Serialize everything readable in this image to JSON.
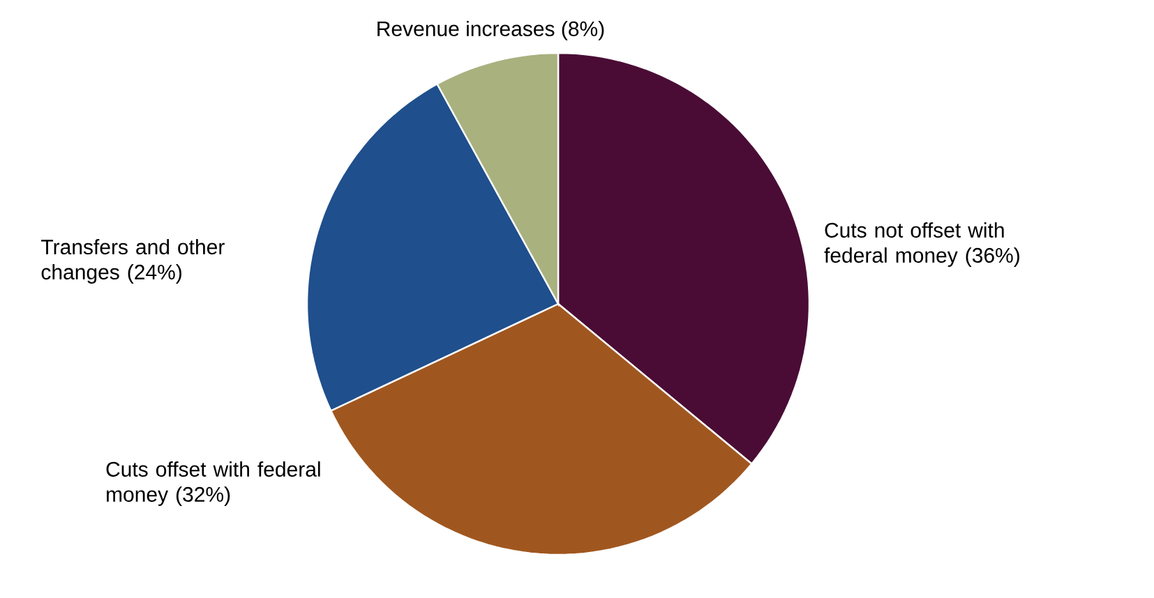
{
  "chart_data": {
    "type": "pie",
    "categories": [
      "Cuts not offset with federal money (36%)",
      "Cuts offset with federal money (32%)",
      "Transfers and other changes (24%)",
      "Revenue increases (8%)"
    ],
    "values": [
      36,
      32,
      24,
      8
    ],
    "colors": [
      "#4a0c35",
      "#a0571f",
      "#1f4f8c",
      "#a9b17f"
    ]
  }
}
